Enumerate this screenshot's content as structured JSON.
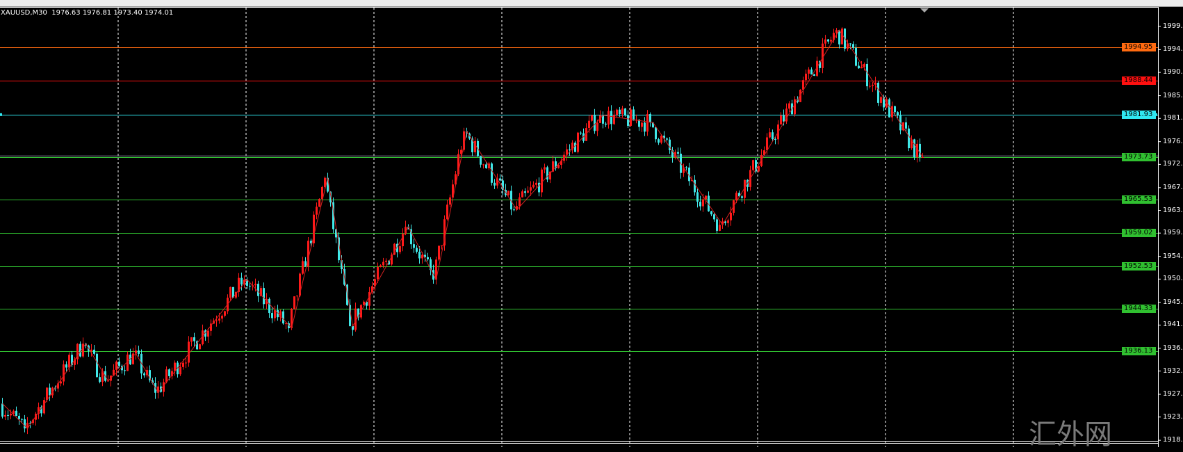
{
  "header": {
    "symbol": "XAUUSD,M30",
    "ohlc": "1976.63 1976.81 1973.40 1974.01"
  },
  "watermark": "汇外网",
  "colors": {
    "bull": "#ff1a1a",
    "bear": "#40e8e8",
    "zigzag": "#d02020",
    "grid": "#ffffff",
    "background": "#000000"
  },
  "chart_data": {
    "type": "candlestick",
    "symbol": "XAUUSD",
    "timeframe": "M30",
    "ylim": [
      1918.9,
      1999.0
    ],
    "y_ticks": [
      "1999.00",
      "1994.50",
      "1990.10",
      "1985.60",
      "1981.20",
      "1976.70",
      "1972.30",
      "1967.80",
      "1963.40",
      "1959.00",
      "1954.50",
      "1950.10",
      "1945.60",
      "1941.20",
      "1936.70",
      "1932.30",
      "1927.80",
      "1923.40",
      "1918.90"
    ],
    "zigzag_prices": [
      1926.0,
      1921.2,
      1937.6,
      1930.4,
      1935.7,
      1928.1,
      1950.0,
      1940.6,
      1969.7,
      1941.0,
      1960.2,
      1950.0,
      1978.7,
      1963.5,
      1981.8,
      1980.4,
      1960.6,
      1998.3,
      1973.7
    ],
    "zigzag_bar_index": [
      0,
      9,
      30,
      38,
      48,
      56,
      88,
      104,
      117,
      126,
      146,
      156,
      167,
      185,
      216,
      234,
      259,
      301,
      331
    ],
    "levels": [
      {
        "price": "1994.95",
        "color": "#ff6a10"
      },
      {
        "price": "1988.44",
        "color": "#ff1010"
      },
      {
        "price": "1981.93",
        "color": "#30e8f0"
      },
      {
        "price": "1973.73",
        "color": "#30c030"
      },
      {
        "price": "1965.53",
        "color": "#30c030"
      },
      {
        "price": "1959.02",
        "color": "#30c030"
      },
      {
        "price": "1952.53",
        "color": "#30c030"
      },
      {
        "price": "1944.33",
        "color": "#30c030"
      },
      {
        "price": "1936.13",
        "color": "#30c030"
      }
    ],
    "grid": true
  }
}
